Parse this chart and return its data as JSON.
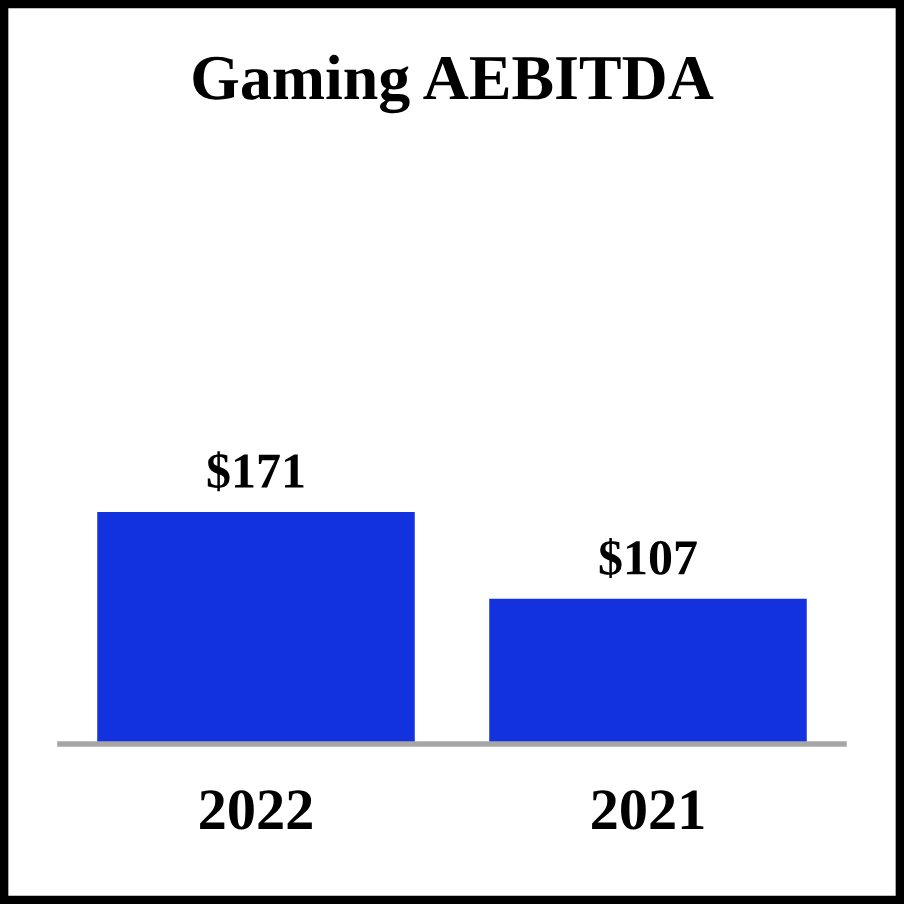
{
  "chart_data": {
    "type": "bar",
    "title": "Gaming AEBITDA",
    "categories": [
      "2022",
      "2021"
    ],
    "values": [
      171,
      107
    ],
    "value_labels": [
      "$171",
      "$107"
    ],
    "color": "#1232e0"
  }
}
